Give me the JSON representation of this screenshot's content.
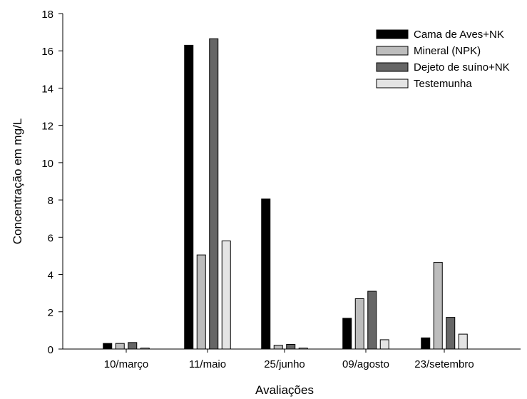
{
  "chart_data": {
    "type": "bar",
    "categories": [
      "10/março",
      "11/maio",
      "25/junho",
      "09/agosto",
      "23/setembro"
    ],
    "series": [
      {
        "name": "Cama de Aves+NK",
        "color": "#000000",
        "values": [
          0.3,
          16.3,
          8.05,
          1.65,
          0.6
        ]
      },
      {
        "name": "Mineral (NPK)",
        "color": "#bdbdbd",
        "values": [
          0.3,
          5.05,
          0.2,
          2.7,
          4.65
        ]
      },
      {
        "name": "Dejeto de suíno+NK",
        "color": "#666666",
        "values": [
          0.35,
          16.65,
          0.25,
          3.1,
          1.7
        ]
      },
      {
        "name": "Testemunha",
        "color": "#e4e4e4",
        "values": [
          0.05,
          5.8,
          0.05,
          0.5,
          0.8
        ]
      }
    ],
    "xlabel": "Avaliações",
    "ylabel": "Concentração em mg/L",
    "ylim": [
      0,
      18
    ],
    "yticks": [
      0,
      2,
      4,
      6,
      8,
      10,
      12,
      14,
      16,
      18
    ],
    "grid": false,
    "legend_position": "top-right"
  }
}
